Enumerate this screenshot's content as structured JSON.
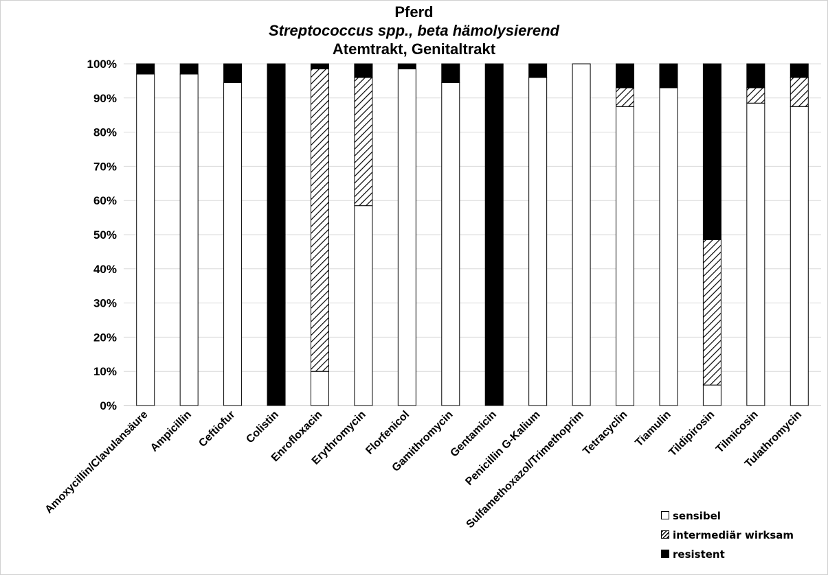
{
  "chart_data": {
    "type": "bar",
    "stacked": true,
    "title": [
      "Pferd",
      "Streptococcus spp., beta hämolysierend",
      "Atemtrakt, Genitaltrakt"
    ],
    "xlabel": "",
    "ylabel": "",
    "ylim": [
      0,
      100
    ],
    "y_ticks": [
      "0%",
      "10%",
      "20%",
      "30%",
      "40%",
      "50%",
      "60%",
      "70%",
      "80%",
      "90%",
      "100%"
    ],
    "grid": true,
    "legend_position": "bottom-right",
    "categories": [
      "Amoxycillin/Clavulansäure",
      "Ampicillin",
      "Ceftiofur",
      "Colistin",
      "Enrofloxacin",
      "Erythromycin",
      "Florfenicol",
      "Gamithromycin",
      "Gentamicin",
      "Penicillin G-Kalium",
      "Sulfamethoxazol/Trimethoprim",
      "Tetracyclin",
      "Tiamulin",
      "Tildipirosin",
      "Tilmicosin",
      "Tulathromycin"
    ],
    "series": [
      {
        "name": "sensibel",
        "fill": "#ffffff",
        "values": [
          97,
          97,
          94.5,
          0,
          10,
          58.5,
          98.5,
          94.5,
          0,
          96,
          100,
          87.5,
          93,
          6,
          88.5,
          87.5
        ]
      },
      {
        "name": "intermediär wirksam",
        "fill": "hatch",
        "values": [
          0,
          0,
          0,
          0,
          88.5,
          37.5,
          0,
          0,
          0,
          0,
          0,
          5.5,
          0,
          42.5,
          4.5,
          8.5
        ]
      },
      {
        "name": "resistent",
        "fill": "#000000",
        "values": [
          3,
          3,
          5.5,
          100,
          1.5,
          4,
          1.5,
          5.5,
          100,
          4,
          0,
          7,
          7,
          51.5,
          7,
          4
        ]
      }
    ]
  }
}
